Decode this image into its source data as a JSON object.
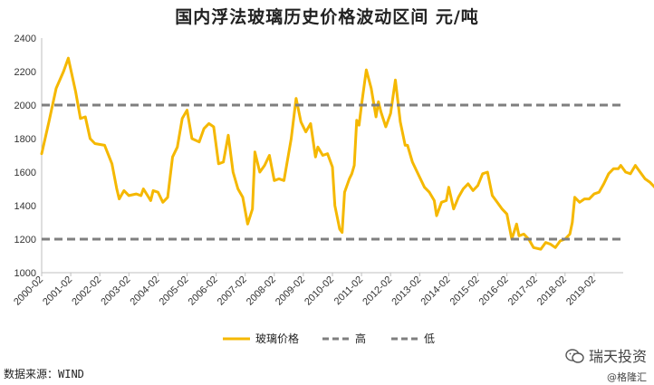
{
  "chart_data": {
    "type": "line",
    "title": "国内浮法玻璃历史价格波动区间  元/吨",
    "ylim": [
      1000,
      2400
    ],
    "yticks": [
      1000,
      1200,
      1400,
      1600,
      1800,
      2000,
      2200,
      2400
    ],
    "xticks": [
      "2000-02",
      "2001-02",
      "2002-02",
      "2003-02",
      "2004-02",
      "2005-02",
      "2006-02",
      "2007-02",
      "2008-02",
      "2009-02",
      "2010-02",
      "2011-02",
      "2012-02",
      "2013-02",
      "2014-02",
      "2015-02",
      "2016-02",
      "2017-02",
      "2018-02",
      "2019-02"
    ],
    "x_start": "2000-02",
    "series": [
      {
        "name": "玻璃价格",
        "color": "#F5B800",
        "points": [
          [
            "2000-02",
            1710
          ],
          [
            "2000-05",
            1900
          ],
          [
            "2000-08",
            2100
          ],
          [
            "2000-11",
            2200
          ],
          [
            "2001-01",
            2280
          ],
          [
            "2001-04",
            2080
          ],
          [
            "2001-06",
            1920
          ],
          [
            "2001-08",
            1930
          ],
          [
            "2001-10",
            1800
          ],
          [
            "2001-12",
            1770
          ],
          [
            "2002-04",
            1760
          ],
          [
            "2002-07",
            1650
          ],
          [
            "2002-09",
            1500
          ],
          [
            "2002-10",
            1440
          ],
          [
            "2002-12",
            1490
          ],
          [
            "2003-02",
            1460
          ],
          [
            "2003-05",
            1470
          ],
          [
            "2003-07",
            1460
          ],
          [
            "2003-08",
            1500
          ],
          [
            "2003-11",
            1430
          ],
          [
            "2003-12",
            1490
          ],
          [
            "2004-02",
            1480
          ],
          [
            "2004-04",
            1420
          ],
          [
            "2004-06",
            1450
          ],
          [
            "2004-08",
            1690
          ],
          [
            "2004-10",
            1750
          ],
          [
            "2004-12",
            1920
          ],
          [
            "2005-02",
            1970
          ],
          [
            "2005-04",
            1800
          ],
          [
            "2005-07",
            1780
          ],
          [
            "2005-09",
            1860
          ],
          [
            "2005-11",
            1890
          ],
          [
            "2006-01",
            1870
          ],
          [
            "2006-03",
            1650
          ],
          [
            "2006-05",
            1660
          ],
          [
            "2006-07",
            1820
          ],
          [
            "2006-09",
            1600
          ],
          [
            "2006-11",
            1500
          ],
          [
            "2007-01",
            1450
          ],
          [
            "2007-03",
            1290
          ],
          [
            "2007-05",
            1380
          ],
          [
            "2007-06",
            1720
          ],
          [
            "2007-08",
            1600
          ],
          [
            "2007-10",
            1640
          ],
          [
            "2007-12",
            1700
          ],
          [
            "2008-02",
            1550
          ],
          [
            "2008-04",
            1560
          ],
          [
            "2008-06",
            1550
          ],
          [
            "2008-09",
            1800
          ],
          [
            "2008-11",
            2040
          ],
          [
            "2009-01",
            1900
          ],
          [
            "2009-03",
            1840
          ],
          [
            "2009-05",
            1890
          ],
          [
            "2009-07",
            1690
          ],
          [
            "2009-08",
            1750
          ],
          [
            "2009-10",
            1700
          ],
          [
            "2009-12",
            1710
          ],
          [
            "2010-02",
            1630
          ],
          [
            "2010-03",
            1400
          ],
          [
            "2010-05",
            1260
          ],
          [
            "2010-06",
            1240
          ],
          [
            "2010-07",
            1480
          ],
          [
            "2010-09",
            1560
          ],
          [
            "2010-10",
            1590
          ],
          [
            "2010-11",
            1640
          ],
          [
            "2010-12",
            1910
          ],
          [
            "2011-01",
            1880
          ],
          [
            "2011-02",
            2000
          ],
          [
            "2011-04",
            2210
          ],
          [
            "2011-06",
            2100
          ],
          [
            "2011-08",
            1930
          ],
          [
            "2011-09",
            2020
          ],
          [
            "2011-10",
            1960
          ],
          [
            "2011-12",
            1870
          ],
          [
            "2012-02",
            1950
          ],
          [
            "2012-04",
            2150
          ],
          [
            "2012-06",
            1900
          ],
          [
            "2012-08",
            1760
          ],
          [
            "2012-09",
            1760
          ],
          [
            "2012-11",
            1660
          ],
          [
            "2013-01",
            1600
          ],
          [
            "2013-04",
            1510
          ],
          [
            "2013-06",
            1480
          ],
          [
            "2013-08",
            1430
          ],
          [
            "2013-09",
            1340
          ],
          [
            "2013-11",
            1420
          ],
          [
            "2014-01",
            1430
          ],
          [
            "2014-02",
            1510
          ],
          [
            "2014-04",
            1380
          ],
          [
            "2014-06",
            1450
          ],
          [
            "2014-08",
            1500
          ],
          [
            "2014-10",
            1530
          ],
          [
            "2014-12",
            1490
          ],
          [
            "2015-02",
            1520
          ],
          [
            "2015-04",
            1590
          ],
          [
            "2015-06",
            1600
          ],
          [
            "2015-08",
            1460
          ],
          [
            "2015-10",
            1420
          ],
          [
            "2015-12",
            1380
          ],
          [
            "2016-02",
            1350
          ],
          [
            "2016-04",
            1200
          ],
          [
            "2016-06",
            1290
          ],
          [
            "2016-07",
            1220
          ],
          [
            "2016-09",
            1230
          ],
          [
            "2016-11",
            1200
          ],
          [
            "2017-01",
            1150
          ],
          [
            "2017-04",
            1140
          ],
          [
            "2017-06",
            1180
          ],
          [
            "2017-08",
            1170
          ],
          [
            "2017-10",
            1150
          ],
          [
            "2017-12",
            1190
          ],
          [
            "2018-02",
            1200
          ],
          [
            "2018-04",
            1230
          ],
          [
            "2018-05",
            1300
          ],
          [
            "2018-06",
            1450
          ],
          [
            "2018-08",
            1420
          ],
          [
            "2018-10",
            1440
          ],
          [
            "2018-12",
            1440
          ],
          [
            "2019-02",
            1470
          ],
          [
            "2019-04",
            1480
          ],
          [
            "2019-06",
            1530
          ],
          [
            "2019-08",
            1590
          ],
          [
            "2019-10",
            1620
          ],
          [
            "2019-12",
            1620
          ],
          [
            "2020-01",
            1640
          ],
          [
            "2020-03",
            1600
          ],
          [
            "2020-05",
            1590
          ],
          [
            "2020-07",
            1640
          ],
          [
            "2020-09",
            1600
          ],
          [
            "2020-11",
            1560
          ],
          [
            "2021-01",
            1540
          ],
          [
            "2021-03",
            1510
          ]
        ]
      },
      {
        "name": "高",
        "color": "#7F7F7F",
        "dashed": true,
        "value": 2000
      },
      {
        "name": "低",
        "color": "#7F7F7F",
        "dashed": true,
        "value": 1200
      }
    ]
  },
  "footer": {
    "source": "数据来源：WIND",
    "watermark_main": "瑞天投资",
    "watermark_sub": "@格隆汇"
  }
}
